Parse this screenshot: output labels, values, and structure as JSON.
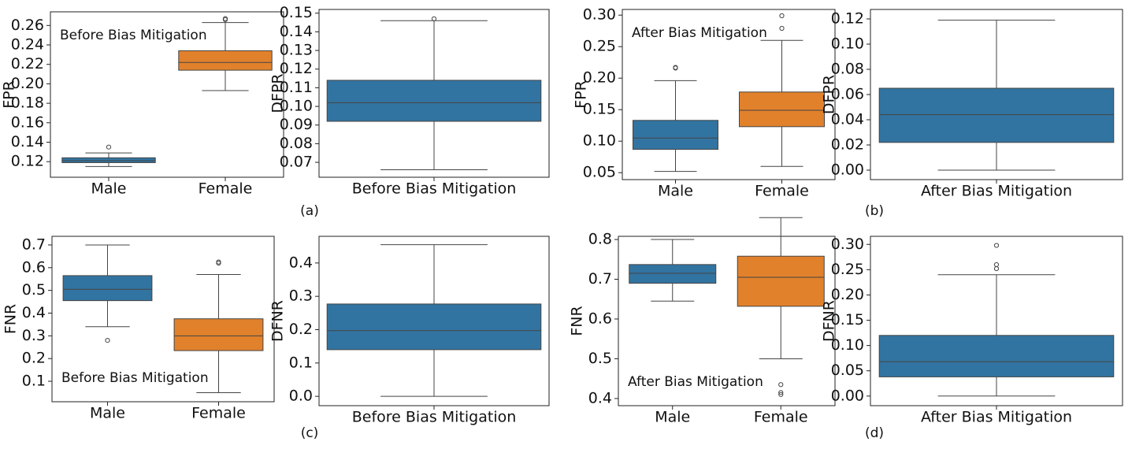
{
  "chart_data": [
    {
      "type": "box",
      "ylabel": "FPR",
      "annotation": "Before Bias Mitigation",
      "annotation_corner": "upper left",
      "categories": [
        "Male",
        "Female"
      ],
      "ylim": [
        0.104,
        0.274
      ],
      "yticks": [
        0.12,
        0.14,
        0.16,
        0.18,
        {
          "value": 0.2,
          "label": "0.20"
        },
        0.22,
        0.24,
        0.26
      ],
      "boxes": [
        {
          "color": "#3274a1",
          "whislo": 0.115,
          "q1": 0.119,
          "median": 0.121,
          "q3": 0.124,
          "whishi": 0.129,
          "fliers": [
            0.135
          ]
        },
        {
          "color": "#e1812c",
          "whislo": 0.193,
          "q1": 0.214,
          "median": 0.222,
          "q3": 0.234,
          "whishi": 0.263,
          "fliers": [
            0.266,
            0.267
          ]
        }
      ]
    },
    {
      "type": "box",
      "ylabel": "DFPR",
      "categories": [
        "Before Bias Mitigation"
      ],
      "ylim": [
        0.062,
        0.152
      ],
      "yticks": [
        0.07,
        0.08,
        0.09,
        {
          "value": 0.1,
          "label": "0.10"
        },
        0.11,
        0.12,
        0.13,
        0.14,
        0.15
      ],
      "boxes": [
        {
          "color": "#3274a1",
          "whislo": 0.066,
          "q1": 0.092,
          "median": 0.102,
          "q3": 0.114,
          "whishi": 0.146,
          "fliers": [
            0.147
          ]
        }
      ]
    },
    {
      "type": "box",
      "ylabel": "FPR",
      "annotation": "After Bias Mitigation",
      "annotation_corner": "upper left",
      "categories": [
        "Male",
        "Female"
      ],
      "ylim": [
        0.039,
        0.309
      ],
      "yticks": [
        0.05,
        {
          "value": 0.1,
          "label": "0.10"
        },
        0.15,
        {
          "value": 0.2,
          "label": "0.20"
        },
        0.25,
        {
          "value": 0.3,
          "label": "0.30"
        }
      ],
      "boxes": [
        {
          "color": "#3274a1",
          "whislo": 0.052,
          "q1": 0.087,
          "median": 0.105,
          "q3": 0.133,
          "whishi": 0.196,
          "fliers": [
            0.216,
            0.217
          ]
        },
        {
          "color": "#e1812c",
          "whislo": 0.06,
          "q1": 0.123,
          "median": 0.149,
          "q3": 0.178,
          "whishi": 0.26,
          "fliers": [
            0.279,
            0.299
          ]
        }
      ]
    },
    {
      "type": "box",
      "ylabel": "DFPR",
      "categories": [
        "After Bias Mitigation"
      ],
      "ylim": [
        -0.0075,
        0.1275
      ],
      "yticks": [
        {
          "value": 0,
          "label": "0.00"
        },
        0.02,
        0.04,
        0.06,
        0.08,
        {
          "value": 0.1,
          "label": "0.10"
        },
        0.12
      ],
      "boxes": [
        {
          "color": "#3274a1",
          "whislo": 0,
          "q1": 0.022,
          "median": 0.044,
          "q3": 0.065,
          "whishi": 0.119,
          "fliers": []
        }
      ]
    },
    {
      "type": "box",
      "ylabel": "FNR",
      "annotation": "Before Bias Mitigation",
      "annotation_corner": "lower left",
      "categories": [
        "Male",
        "Female"
      ],
      "ylim": [
        0.01,
        0.738
      ],
      "yticks": [
        0.1,
        0.2,
        0.3,
        0.4,
        0.5,
        0.6,
        0.7
      ],
      "boxes": [
        {
          "color": "#3274a1",
          "whislo": 0.34,
          "q1": 0.455,
          "median": 0.505,
          "q3": 0.565,
          "whishi": 0.7,
          "fliers": [
            0.28
          ]
        },
        {
          "color": "#e1812c",
          "whislo": 0.05,
          "q1": 0.235,
          "median": 0.3,
          "q3": 0.375,
          "whishi": 0.57,
          "fliers": [
            0.62,
            0.625
          ]
        }
      ]
    },
    {
      "type": "box",
      "ylabel": "DFNR",
      "categories": [
        "Before Bias Mitigation"
      ],
      "ylim": [
        -0.028,
        0.48
      ],
      "yticks": [
        {
          "value": 0,
          "label": "0.0"
        },
        0.1,
        0.2,
        0.3,
        0.4
      ],
      "boxes": [
        {
          "color": "#3274a1",
          "whislo": 0,
          "q1": 0.14,
          "median": 0.197,
          "q3": 0.277,
          "whishi": 0.455,
          "fliers": []
        }
      ]
    },
    {
      "type": "box",
      "ylabel": "FNR",
      "annotation": "After Bias Mitigation",
      "annotation_corner": "lower left",
      "categories": [
        "Male",
        "Female"
      ],
      "ylim": [
        0.382,
        0.808
      ],
      "yticks": [
        0.4,
        0.5,
        0.6,
        0.7,
        0.8
      ],
      "boxes": [
        {
          "color": "#3274a1",
          "whislo": 0.645,
          "q1": 0.69,
          "median": 0.715,
          "q3": 0.737,
          "whishi": 0.8,
          "fliers": []
        },
        {
          "color": "#e1812c",
          "whislo": 0.5,
          "q1": 0.632,
          "median": 0.705,
          "q3": 0.758,
          "whishi": 0.855,
          "fliers": [
            0.435,
            0.415,
            0.41
          ]
        }
      ]
    },
    {
      "type": "box",
      "ylabel": "DFNR",
      "categories": [
        "After Bias Mitigation"
      ],
      "ylim": [
        -0.019,
        0.316
      ],
      "yticks": [
        {
          "value": 0,
          "label": "0.00"
        },
        0.05,
        {
          "value": 0.1,
          "label": "0.10"
        },
        0.15,
        {
          "value": 0.2,
          "label": "0.20"
        },
        0.25,
        {
          "value": 0.3,
          "label": "0.30"
        }
      ],
      "boxes": [
        {
          "color": "#3274a1",
          "whislo": 0,
          "q1": 0.038,
          "median": 0.068,
          "q3": 0.12,
          "whishi": 0.24,
          "fliers": [
            0.298,
            0.26,
            0.252
          ]
        }
      ]
    }
  ],
  "panel_labels": [
    "(a)",
    "(b)",
    "(c)",
    "(d)"
  ]
}
